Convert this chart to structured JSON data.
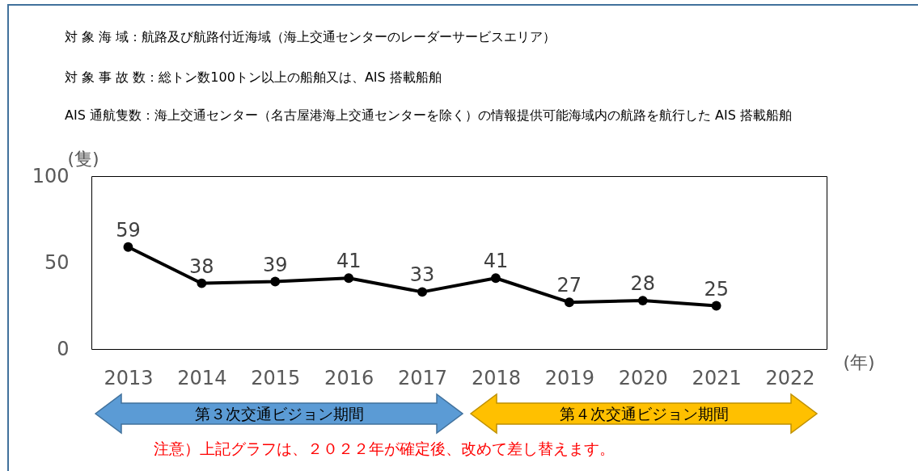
{
  "chart_data": {
    "type": "line",
    "xlabel": "(年)",
    "ylabel": "(隻)",
    "categories": [
      "2013",
      "2014",
      "2015",
      "2016",
      "2017",
      "2018",
      "2019",
      "2020",
      "2021",
      "2022"
    ],
    "series": [
      {
        "color": "#000000",
        "values": [
          59,
          38,
          39,
          41,
          33,
          41,
          27,
          28,
          25,
          null
        ]
      }
    ],
    "ylim": [
      0,
      100
    ],
    "yticks": [
      0,
      50,
      100
    ],
    "grid": false,
    "marker": "circle",
    "line_style": "solid",
    "data_labels": true,
    "annotations": [
      "対 象 海 域：航路及び航路付近海域（海上交通センターのレーダーサービスエリア）",
      "対 象 事 故 数：総トン数100トン以上の船舶又は、AIS 搭載船舶",
      "AIS 通航隻数：海上交通センター（名古屋港海上交通センターを除く）の情報提供可能海域内の航路を航行した AIS 搭載船舶",
      "第３次交通ビジョン期間",
      "第４次交通ビジョン期間",
      "注意）上記グラフは、２０２２年が確定後、改めて差し替えます。"
    ]
  }
}
